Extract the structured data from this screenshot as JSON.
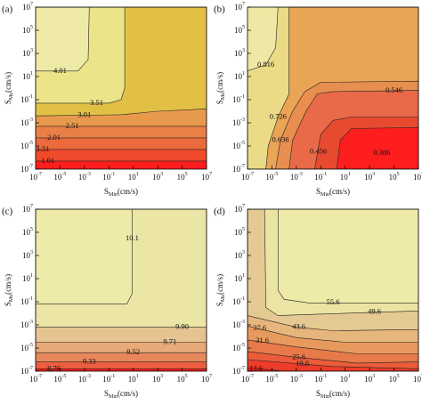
{
  "chart_data": [
    {
      "type": "contour",
      "title": "(a)",
      "xlabel": {
        "base": "S",
        "sub": "Min",
        "unit": "(cm/s)"
      },
      "ylabel": {
        "base": "S",
        "sub": "Mu",
        "unit": "(cm/s)"
      },
      "xscale": "log",
      "yscale": "log",
      "xlim": [
        1e-07,
        10000000.0
      ],
      "ylim": [
        1e-07,
        10000000.0
      ],
      "xticks": [
        {
          "value": 1e-07,
          "label": "10",
          "sup": "-7"
        },
        {
          "value": 1e-05,
          "label": "10",
          "sup": "-5"
        },
        {
          "value": 0.001,
          "label": "10",
          "sup": "-3"
        },
        {
          "value": 0.1,
          "label": "10",
          "sup": "-1"
        },
        {
          "value": 10.0,
          "label": "10",
          "sup": "1"
        },
        {
          "value": 1000.0,
          "label": "10",
          "sup": "3"
        },
        {
          "value": 100000.0,
          "label": "10",
          "sup": "5"
        },
        {
          "value": 10000000.0,
          "label": "10",
          "sup": "7"
        }
      ],
      "yticks": [
        {
          "value": 1e-07,
          "label": "10",
          "sup": "-7"
        },
        {
          "value": 1e-05,
          "label": "10",
          "sup": "-5"
        },
        {
          "value": 0.001,
          "label": "10",
          "sup": "-3"
        },
        {
          "value": 0.1,
          "label": "10",
          "sup": "-1"
        },
        {
          "value": 10.0,
          "label": "10",
          "sup": "1"
        },
        {
          "value": 1000.0,
          "label": "10",
          "sup": "3"
        },
        {
          "value": 100000.0,
          "label": "10",
          "sup": "5"
        },
        {
          "value": 10000000.0,
          "label": "10",
          "sup": "7"
        }
      ],
      "base_color": "#ff1e1e",
      "contours": [
        {
          "level": 1.01,
          "color": "#f04a2c",
          "x": [
            1e-07,
            10000000.0,
            10000000.0,
            1e-07
          ],
          "y": [
            5e-07,
            5e-07,
            10000000.0,
            10000000.0
          ],
          "label_x": 1e-06,
          "label_y": 5e-07
        },
        {
          "level": 1.51,
          "color": "#ec6a3c",
          "x": [
            1e-07,
            10000000.0,
            10000000.0,
            1e-07
          ],
          "y": [
            5e-06,
            5e-06,
            10000000.0,
            10000000.0
          ],
          "label_x": 4e-07,
          "label_y": 5e-06
        },
        {
          "level": 2.01,
          "color": "#ea8048",
          "x": [
            1e-07,
            10000000.0,
            10000000.0,
            1e-07
          ],
          "y": [
            5e-05,
            5e-05,
            10000000.0,
            10000000.0
          ],
          "label_x": 3.16e-06,
          "label_y": 5e-05
        },
        {
          "level": 2.51,
          "color": "#e89a4c",
          "x": [
            1e-07,
            10000000.0,
            10000000.0,
            1e-07
          ],
          "y": [
            0.0005,
            0.0005,
            10000000.0,
            10000000.0
          ],
          "label_x": 0.0001,
          "label_y": 0.0005
        },
        {
          "level": 3.01,
          "color": "#e2c046",
          "x": [
            1e-07,
            1,
            1000.0,
            10000000.0,
            10000000.0,
            1e-07
          ],
          "y": [
            0.004,
            0.005,
            0.01,
            0.016,
            10000000.0,
            10000000.0
          ],
          "label_x": 0.001,
          "label_y": 0.0045
        },
        {
          "level": 3.51,
          "color": "#ece488",
          "x": [
            1e-07,
            0.1,
            1,
            2,
            2,
            1e-07
          ],
          "y": [
            0.05,
            0.05,
            0.1,
            1,
            10000000.0,
            10000000.0
          ],
          "label_x": 0.01,
          "label_y": 0.05
        },
        {
          "level": 4.01,
          "color": "#eeeaa6",
          "x": [
            1e-07,
            0.0003,
            0.002,
            0.0025,
            1e-07
          ],
          "y": [
            30,
            30,
            300,
            10000000.0,
            10000000.0
          ],
          "label_x": 1e-05,
          "label_y": 30
        }
      ]
    },
    {
      "type": "contour",
      "title": "(b)",
      "xlabel": {
        "base": "S",
        "sub": "Min",
        "unit": "(cm/s)"
      },
      "ylabel": {
        "base": "S",
        "sub": "Mu",
        "unit": "(cm/s)"
      },
      "xscale": "log",
      "yscale": "log",
      "xlim": [
        1e-07,
        10000000.0
      ],
      "ylim": [
        1e-07,
        10000000.0
      ],
      "xticks": [
        {
          "value": 1e-07,
          "label": "10",
          "sup": "-7"
        },
        {
          "value": 1e-05,
          "label": "10",
          "sup": "-5"
        },
        {
          "value": 0.001,
          "label": "10",
          "sup": "-3"
        },
        {
          "value": 0.1,
          "label": "10",
          "sup": "-1"
        },
        {
          "value": 10.0,
          "label": "10",
          "sup": "1"
        },
        {
          "value": 1000.0,
          "label": "10",
          "sup": "3"
        },
        {
          "value": 100000.0,
          "label": "10",
          "sup": "5"
        },
        {
          "value": 10000000.0,
          "label": "10",
          "sup": "7"
        }
      ],
      "yticks": [
        {
          "value": 1e-07,
          "label": "10",
          "sup": "-7"
        },
        {
          "value": 1e-05,
          "label": "10",
          "sup": "-5"
        },
        {
          "value": 0.001,
          "label": "10",
          "sup": "-3"
        },
        {
          "value": 0.1,
          "label": "10",
          "sup": "-1"
        },
        {
          "value": 10.0,
          "label": "10",
          "sup": "1"
        },
        {
          "value": 1000.0,
          "label": "10",
          "sup": "3"
        },
        {
          "value": 100000.0,
          "label": "10",
          "sup": "5"
        },
        {
          "value": 10000000.0,
          "label": "10",
          "sup": "7"
        }
      ],
      "base_color": "#efe8a4",
      "contours": [
        {
          "level": 0.816,
          "color": "#ebdb86",
          "x": [
            1e-07,
            3.16e-06,
            2e-05,
            3.16e-05,
            10000000.0,
            10000000.0,
            1e-07
          ],
          "y": [
            31.6,
            100,
            3160,
            10000000.0,
            10000000.0,
            1e-07,
            1e-07
          ],
          "label_x": 3.16e-06,
          "label_y": 100
        },
        {
          "level": 0.726,
          "color": "#e9a456",
          "x": [
            0.00025,
            10000000.0,
            10000000.0,
            3.16e-06,
            5e-06,
            3.16e-05,
            0.00025
          ],
          "y": [
            10000000.0,
            10000000.0,
            1e-07,
            1e-07,
            1e-05,
            0.00316,
            0.316
          ],
          "label_x": 3.16e-05,
          "label_y": 0.00316
        },
        {
          "level": 0.636,
          "color": "#e88e4e",
          "x": [
            2e-05,
            5e-05,
            0.0005,
            0.005,
            0.1,
            10000000.0,
            10000000.0
          ],
          "y": [
            1e-07,
            3.16e-05,
            0.01,
            0.5,
            3.16,
            4,
            1e-07
          ],
          "label_x": 5e-05,
          "label_y": 3.16e-05
        },
        {
          "level": 0.546,
          "color": "#e86a48",
          "x": [
            0.00025,
            0.0005,
            0.0063,
            0.05,
            1,
            10000000.0,
            10000000.0
          ],
          "y": [
            1e-07,
            3.16e-05,
            0.01,
            0.316,
            0.5,
            0.63,
            1e-07
          ],
          "label_x": 100000.0,
          "label_y": 0.6
        },
        {
          "level": 0.456,
          "color": "#e84a30",
          "x": [
            0.0316,
            0.1,
            1,
            31.6,
            10000000.0,
            10000000.0
          ],
          "y": [
            1e-07,
            0.0001,
            0.0016,
            0.00316,
            0.00316,
            1e-07
          ],
          "label_x": 0.063,
          "label_y": 3.16e-06
        },
        {
          "level": 0.386,
          "color": "#ff1e1e",
          "x": [
            2,
            4,
            31.6,
            10000000.0,
            10000000.0
          ],
          "y": [
            1e-07,
            3.16e-05,
            0.000316,
            0.0004,
            1e-07
          ],
          "label_x": 10000.0,
          "label_y": 2.5e-06
        }
      ]
    },
    {
      "type": "contour",
      "title": "(c)",
      "xlabel": {
        "base": "S",
        "sub": "Min",
        "unit": "(cm/s)"
      },
      "ylabel": {
        "base": "S",
        "sub": "Mu",
        "unit": "(cm/s)"
      },
      "xscale": "log",
      "yscale": "log",
      "xlim": [
        1e-07,
        10000000.0
      ],
      "ylim": [
        1e-07,
        10000000.0
      ],
      "xticks": [
        {
          "value": 1e-07,
          "label": "10",
          "sup": "-7"
        },
        {
          "value": 1e-05,
          "label": "10",
          "sup": "-5"
        },
        {
          "value": 0.001,
          "label": "10",
          "sup": "-3"
        },
        {
          "value": 0.1,
          "label": "10",
          "sup": "-1"
        },
        {
          "value": 10.0,
          "label": "10",
          "sup": "1"
        },
        {
          "value": 1000.0,
          "label": "10",
          "sup": "3"
        },
        {
          "value": 100000.0,
          "label": "10",
          "sup": "5"
        },
        {
          "value": 10000000.0,
          "label": "10",
          "sup": "7"
        }
      ],
      "yticks": [
        {
          "value": 1e-07,
          "label": "10",
          "sup": "-7"
        },
        {
          "value": 1e-05,
          "label": "10",
          "sup": "-5"
        },
        {
          "value": 0.001,
          "label": "10",
          "sup": "-3"
        },
        {
          "value": 0.1,
          "label": "10",
          "sup": "-1"
        },
        {
          "value": 10.0,
          "label": "10",
          "sup": "1"
        },
        {
          "value": 1000.0,
          "label": "10",
          "sup": "3"
        },
        {
          "value": 100000.0,
          "label": "10",
          "sup": "5"
        },
        {
          "value": 10000000.0,
          "label": "10",
          "sup": "7"
        }
      ],
      "base_color": "#ff1e1e",
      "contours": [
        {
          "level": 8.76,
          "color": "#ec5e40",
          "x": [
            1e-07,
            10000000.0,
            10000000.0,
            1e-07
          ],
          "y": [
            1.6e-07,
            1.6e-07,
            10000000.0,
            10000000.0
          ],
          "label_x": 3.16e-06,
          "label_y": 1.6e-07
        },
        {
          "level": 9.33,
          "color": "#e8885a",
          "x": [
            1e-07,
            10000000.0,
            10000000.0,
            1e-07
          ],
          "y": [
            6.3e-07,
            6.3e-07,
            10000000.0,
            10000000.0
          ],
          "label_x": 0.0025,
          "label_y": 6.3e-07
        },
        {
          "level": 9.52,
          "color": "#e8aa78",
          "x": [
            1e-07,
            10000000.0,
            10000000.0,
            1e-07
          ],
          "y": [
            4e-06,
            4e-06,
            10000000.0,
            10000000.0
          ],
          "label_x": 10,
          "label_y": 4e-06
        },
        {
          "level": 9.71,
          "color": "#e6c492",
          "x": [
            1e-07,
            10000000.0,
            10000000.0,
            1e-07
          ],
          "y": [
            3.16e-05,
            3.16e-05,
            10000000.0,
            10000000.0
          ],
          "label_x": 10000.0,
          "label_y": 3.16e-05
        },
        {
          "level": 9.9,
          "level_label": "9.90",
          "color": "#ece6a6",
          "x": [
            1e-07,
            10000000.0,
            10000000.0,
            1e-07
          ],
          "y": [
            0.00063,
            0.00063,
            10000000.0,
            10000000.0
          ],
          "label_x": 100000.0,
          "label_y": 0.00063
        },
        {
          "level": 10.1,
          "color": "#eeeaa8",
          "x": [
            1e-07,
            3,
            8,
            8,
            1e-07
          ],
          "y": [
            0.063,
            0.063,
            0.5,
            10000000.0,
            10000000.0
          ],
          "label_x": 8,
          "label_y": 30000.0
        }
      ]
    },
    {
      "type": "contour",
      "title": "(d)",
      "xlabel": {
        "base": "S",
        "sub": "Min",
        "unit": "(cm/s)"
      },
      "ylabel": {
        "base": "S",
        "sub": "Mu",
        "unit": "(cm/s)"
      },
      "xscale": "log",
      "yscale": "log",
      "xlim": [
        1e-07,
        10000000.0
      ],
      "ylim": [
        1e-07,
        10000000.0
      ],
      "xticks": [
        {
          "value": 1e-07,
          "label": "10",
          "sup": "-7"
        },
        {
          "value": 1e-05,
          "label": "10",
          "sup": "-5"
        },
        {
          "value": 0.001,
          "label": "10",
          "sup": "-3"
        },
        {
          "value": 0.1,
          "label": "10",
          "sup": "-1"
        },
        {
          "value": 10.0,
          "label": "10",
          "sup": "1"
        },
        {
          "value": 1000.0,
          "label": "10",
          "sup": "3"
        },
        {
          "value": 100000.0,
          "label": "10",
          "sup": "5"
        },
        {
          "value": 10000000.0,
          "label": "10",
          "sup": "7"
        }
      ],
      "yticks": [
        {
          "value": 1e-07,
          "label": "10",
          "sup": "-7"
        },
        {
          "value": 1e-05,
          "label": "10",
          "sup": "-5"
        },
        {
          "value": 0.001,
          "label": "10",
          "sup": "-3"
        },
        {
          "value": 0.1,
          "label": "10",
          "sup": "-1"
        },
        {
          "value": 10.0,
          "label": "10",
          "sup": "1"
        },
        {
          "value": 1000.0,
          "label": "10",
          "sup": "3"
        },
        {
          "value": 100000.0,
          "label": "10",
          "sup": "5"
        },
        {
          "value": 10000000.0,
          "label": "10",
          "sup": "7"
        }
      ],
      "base_color": "#ff1e1e",
      "contours": [
        {
          "level": 13.6,
          "color": "#ee3c2a",
          "x": [
            1e-07,
            0.0001,
            10000000.0,
            10000000.0,
            1e-07
          ],
          "y": [
            2e-07,
            1e-07,
            1e-07,
            10000000.0,
            10000000.0
          ],
          "label_x": 5e-07,
          "label_y": 1.6e-07
        },
        {
          "level": 19.6,
          "color": "#ea5c3a",
          "x": [
            1e-07,
            1,
            10000000.0,
            10000000.0,
            1e-07
          ],
          "y": [
            1e-06,
            2.5e-07,
            1.6e-07,
            10000000.0,
            10000000.0
          ],
          "label_x": 0.00316,
          "label_y": 4e-07
        },
        {
          "level": 25.6,
          "color": "#e87a4a",
          "x": [
            1e-07,
            0.001,
            100,
            10000000.0,
            10000000.0,
            1e-07
          ],
          "y": [
            5e-06,
            1.6e-06,
            5e-07,
            6.3e-07,
            10000000.0,
            10000000.0
          ],
          "label_x": 0.0016,
          "label_y": 1.6e-06
        },
        {
          "level": 31.6,
          "color": "#e89a5e",
          "x": [
            1e-07,
            0.001,
            100,
            10000000.0,
            10000000.0,
            1e-07
          ],
          "y": [
            5e-05,
            1.26e-05,
            3.16e-06,
            3.16e-06,
            10000000.0,
            10000000.0
          ],
          "label_x": 1.6e-06,
          "label_y": 4e-05
        },
        {
          "level": 37.6,
          "color": "#e6b67c",
          "x": [
            1e-07,
            0.001,
            10,
            10000000.0,
            10000000.0,
            1e-07
          ],
          "y": [
            0.0008,
            8e-05,
            3.16e-05,
            3.16e-05,
            10000000.0,
            10000000.0
          ],
          "label_x": 1e-06,
          "label_y": 0.0005
        },
        {
          "level": 43.6,
          "color": "#e4ca92",
          "x": [
            1e-07,
            0.001,
            1,
            10000000.0,
            10000000.0,
            1e-07
          ],
          "y": [
            0.0063,
            0.00063,
            0.000316,
            0.0004,
            10000000.0,
            10000000.0
          ],
          "label_x": 0.0016,
          "label_y": 0.00063
        },
        {
          "level": 49.6,
          "color": "#ece4a2",
          "x": [
            2.5e-06,
            3.16e-06,
            3.16e-05,
            0.01,
            10000000.0,
            10000000.0
          ],
          "y": [
            10000000.0,
            0.0316,
            0.0063,
            0.008,
            0.016,
            10000000.0
          ],
          "label_x": 2500.0,
          "label_y": 0.0126
        },
        {
          "level": 55.6,
          "color": "#eeeaa8",
          "x": [
            3.16e-05,
            3.16e-05,
            0.0001,
            0.01,
            10000000.0,
            10000000.0
          ],
          "y": [
            10000000.0,
            1,
            0.16,
            0.08,
            0.08,
            10000000.0
          ],
          "label_x": 1,
          "label_y": 0.08
        }
      ]
    }
  ]
}
